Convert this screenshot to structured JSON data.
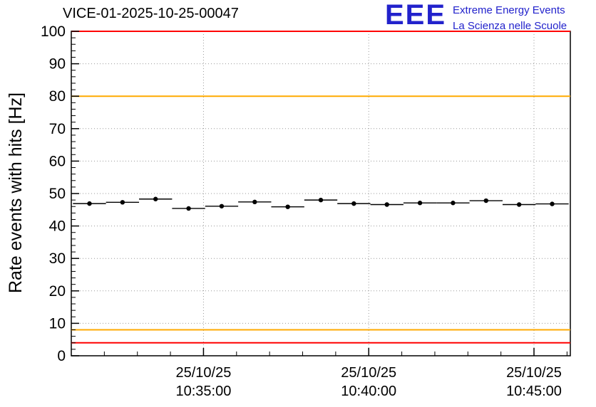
{
  "logo": {
    "acronym": "EEE",
    "line1": "Extreme Energy Events",
    "line2": "La Scienza nelle Scuole",
    "color": "#2222cc"
  },
  "chart_data": {
    "type": "line",
    "title": "VICE-01-2025-10-25-00047",
    "ylabel": "Rate events with hits [Hz]",
    "xlabel": "",
    "ylim": [
      0,
      100
    ],
    "yticks": [
      0,
      10,
      20,
      30,
      40,
      50,
      60,
      70,
      80,
      90,
      100
    ],
    "y_minor_step": 2,
    "grid": true,
    "legend": "none",
    "x_unit": "minutes since 25/10/25 10:30:00",
    "xlim_minutes": [
      1.0,
      16.1
    ],
    "x_minor_step": 1,
    "xticks": [
      {
        "t": 5,
        "date": "25/10/25",
        "time": "10:35:00"
      },
      {
        "t": 10,
        "date": "25/10/25",
        "time": "10:40:00"
      },
      {
        "t": 15,
        "date": "25/10/25",
        "time": "10:45:00"
      }
    ],
    "series": [
      {
        "name": "rate-events-with-hits",
        "color": "#000000",
        "marker": "dot",
        "bin_halfwidth_minutes": 0.5,
        "points": [
          {
            "t": 1.55,
            "hz": 46.9
          },
          {
            "t": 2.55,
            "hz": 47.3
          },
          {
            "t": 3.55,
            "hz": 48.3
          },
          {
            "t": 4.55,
            "hz": 45.4
          },
          {
            "t": 5.55,
            "hz": 46.1
          },
          {
            "t": 6.55,
            "hz": 47.4
          },
          {
            "t": 7.55,
            "hz": 45.9
          },
          {
            "t": 8.55,
            "hz": 48.0
          },
          {
            "t": 9.55,
            "hz": 46.9
          },
          {
            "t": 10.55,
            "hz": 46.6
          },
          {
            "t": 11.55,
            "hz": 47.1
          },
          {
            "t": 12.55,
            "hz": 47.1
          },
          {
            "t": 13.55,
            "hz": 47.8
          },
          {
            "t": 14.55,
            "hz": 46.6
          },
          {
            "t": 15.55,
            "hz": 46.8
          }
        ]
      }
    ],
    "threshold_lines": [
      {
        "name": "alarm-high",
        "value": 100,
        "color": "#ff0000"
      },
      {
        "name": "warn-high",
        "value": 80,
        "color": "#ffaa00"
      },
      {
        "name": "warn-low",
        "value": 8,
        "color": "#ffaa00"
      },
      {
        "name": "alarm-low",
        "value": 4,
        "color": "#ff0000"
      }
    ],
    "colors": {
      "grid": "#999999",
      "axis": "#000000",
      "marker": "#000000"
    }
  }
}
